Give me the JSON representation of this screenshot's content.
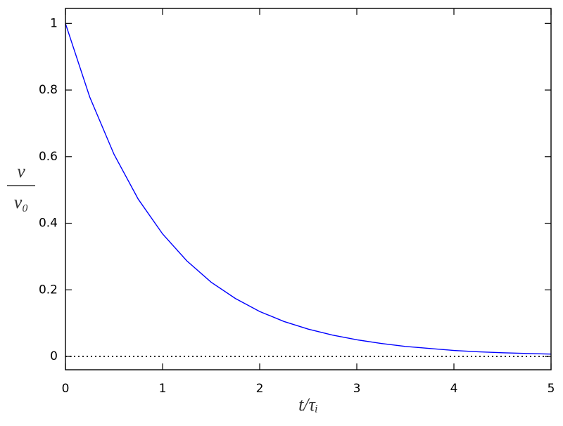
{
  "chart_data": {
    "type": "line",
    "xlabel": "t/τᵢ",
    "ylabel": {
      "numerator": "v",
      "denominator": "v₀"
    },
    "x": [
      0,
      0.25,
      0.5,
      0.75,
      1,
      1.25,
      1.5,
      1.75,
      2,
      2.25,
      2.5,
      2.75,
      3,
      3.25,
      3.5,
      3.75,
      4,
      4.25,
      4.5,
      4.75,
      5
    ],
    "series": [
      {
        "color": "#0000ff",
        "values": [
          1,
          0.779,
          0.607,
          0.472,
          0.368,
          0.287,
          0.223,
          0.174,
          0.135,
          0.105,
          0.082,
          0.064,
          0.05,
          0.039,
          0.03,
          0.024,
          0.018,
          0.014,
          0.011,
          0.009,
          0.007
        ]
      }
    ],
    "xlim": [
      0,
      5
    ],
    "xticks": [
      0,
      1,
      2,
      3,
      4,
      5
    ],
    "ylim": [
      -0.04,
      1.045
    ],
    "yticks": [
      0,
      0.2,
      0.4,
      0.6,
      0.8,
      1
    ],
    "reference_line": 0
  }
}
